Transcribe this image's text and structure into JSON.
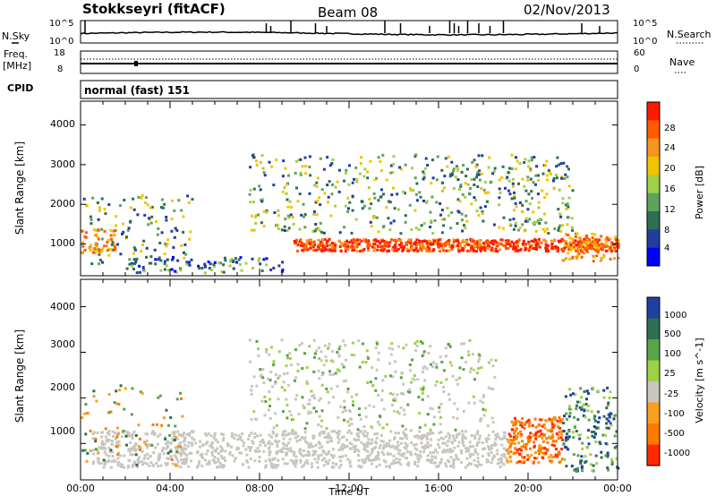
{
  "header": {
    "station": "Stokkseyri (fitACF)",
    "beam": "Beam 08",
    "date": "02/Nov/2013"
  },
  "left_labels": {
    "nsky": "N.Sky",
    "freq_line1": "Freq.",
    "freq_line2": "[MHz]",
    "cpid": "CPID"
  },
  "right_labels": {
    "nsearch": "N.Search",
    "nave": "Nave"
  },
  "cpid_text": "normal (fast) 151",
  "x_axis": {
    "label": "Time UT",
    "ticks": [
      "00:00",
      "04:00",
      "08:00",
      "12:00",
      "16:00",
      "20:00",
      "00:00"
    ],
    "range_hours": [
      0,
      24
    ]
  },
  "chart_data": [
    {
      "type": "line",
      "name": "noise",
      "left_ticks": [
        "10^5",
        "10^0"
      ],
      "right_ticks": [
        "10^5",
        "10^0"
      ],
      "spikes_hours": [
        0.2,
        8.3,
        8.5,
        9.4,
        10.5,
        11.0,
        13.6,
        14.3,
        15.6,
        16.5,
        16.7,
        16.9,
        17.3,
        17.8,
        18.3,
        18.9,
        22.4,
        23.2
      ]
    },
    {
      "type": "line",
      "name": "frequency",
      "left_ticks": [
        "18",
        "8"
      ],
      "right_ticks": [
        "60",
        "0"
      ]
    },
    {
      "type": "heatmap",
      "name": "power",
      "ylabel": "Slant Range [km]",
      "yticks": [
        "1000",
        "2000",
        "3000",
        "4000"
      ],
      "ylim": [
        200,
        4600
      ],
      "colorbar_label": "Power [dB]",
      "colorbar_ticks": [
        "4",
        "8",
        "12",
        "16",
        "20",
        "24",
        "28"
      ],
      "colorbar_range": [
        0,
        32
      ],
      "colors": [
        "#0000ff",
        "#1f3f9f",
        "#2e6e52",
        "#5ea35c",
        "#9ed147",
        "#f2c300",
        "#f5961f",
        "#ff5a00",
        "#ff1a00"
      ],
      "features": [
        {
          "name": "main scatter band",
          "hours": [
            9.5,
            24
          ],
          "range_km": [
            850,
            1150
          ],
          "level": "strong"
        },
        {
          "name": "upper diffuse scatter",
          "hours": [
            7.5,
            22
          ],
          "range_km": [
            1300,
            3300
          ],
          "level": "moderate"
        },
        {
          "name": "early morning echoes",
          "hours": [
            0,
            5
          ],
          "range_km": [
            500,
            2300
          ],
          "level": "moderate"
        },
        {
          "name": "near range band",
          "hours": [
            2,
            9
          ],
          "range_km": [
            300,
            700
          ],
          "level": "weak"
        }
      ]
    },
    {
      "type": "heatmap",
      "name": "velocity",
      "ylabel": "Slant Range [km]",
      "yticks": [
        "1000",
        "2000",
        "3000",
        "4000"
      ],
      "ylim": [
        200,
        4600
      ],
      "colorbar_label": "Velocity [m s^-1]",
      "colorbar_ticks": [
        "1000",
        "500",
        "100",
        "25",
        "-25",
        "-100",
        "-500",
        "-1000"
      ],
      "colors": [
        "#2040a0",
        "#2e6e52",
        "#59a34a",
        "#9ed147",
        "#c8c6be",
        "#f5a020",
        "#ff7a00",
        "#ff2a00"
      ],
      "features": [
        {
          "name": "ground scatter band",
          "hours": [
            0.5,
            19
          ],
          "range_km": [
            500,
            1300
          ],
          "velocity": "near zero"
        },
        {
          "name": "upper ground scatter",
          "hours": [
            7.5,
            18.5
          ],
          "range_km": [
            1300,
            3300
          ],
          "velocity": "near zero"
        },
        {
          "name": "evening negative velocity",
          "hours": [
            19,
            21.5
          ],
          "range_km": [
            600,
            1600
          ],
          "velocity": "-100 to -1000"
        },
        {
          "name": "late positive velocity",
          "hours": [
            21.5,
            24
          ],
          "range_km": [
            400,
            2300
          ],
          "velocity": "+25 to +500"
        }
      ]
    }
  ]
}
